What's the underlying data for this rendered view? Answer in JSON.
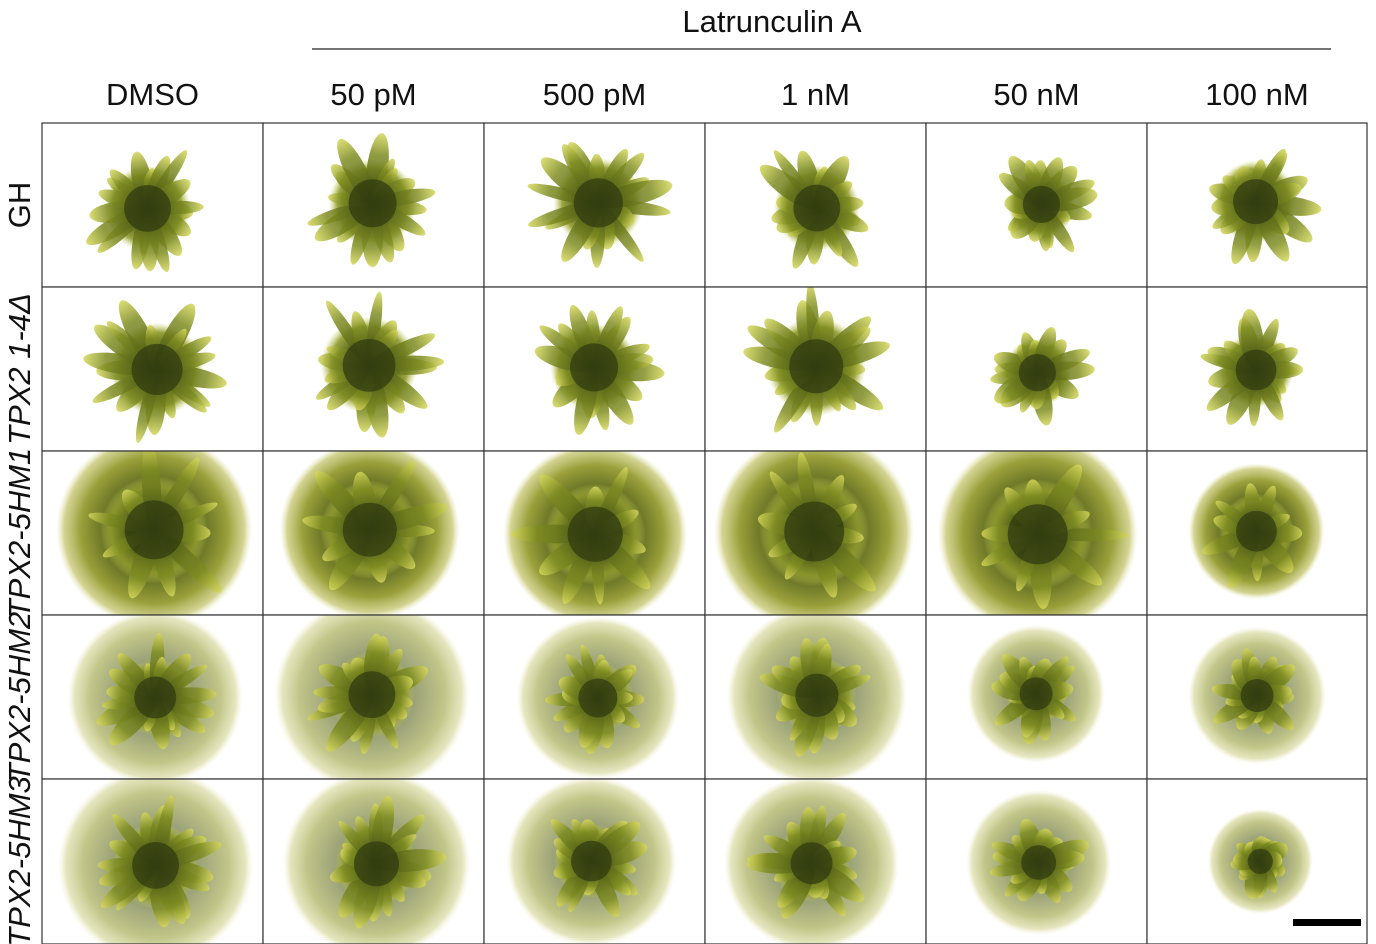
{
  "header": {
    "treatment": "Latrunculin A"
  },
  "columns": [
    "DMSO",
    "50 pM",
    "500 pM",
    "1 nM",
    "50 nM",
    "100  nM"
  ],
  "rows": [
    "GH",
    "TPX2 1-4Δ",
    "TPX2-5HM1",
    "TPX2-5HM2",
    "TPX2-5HM3"
  ]
}
